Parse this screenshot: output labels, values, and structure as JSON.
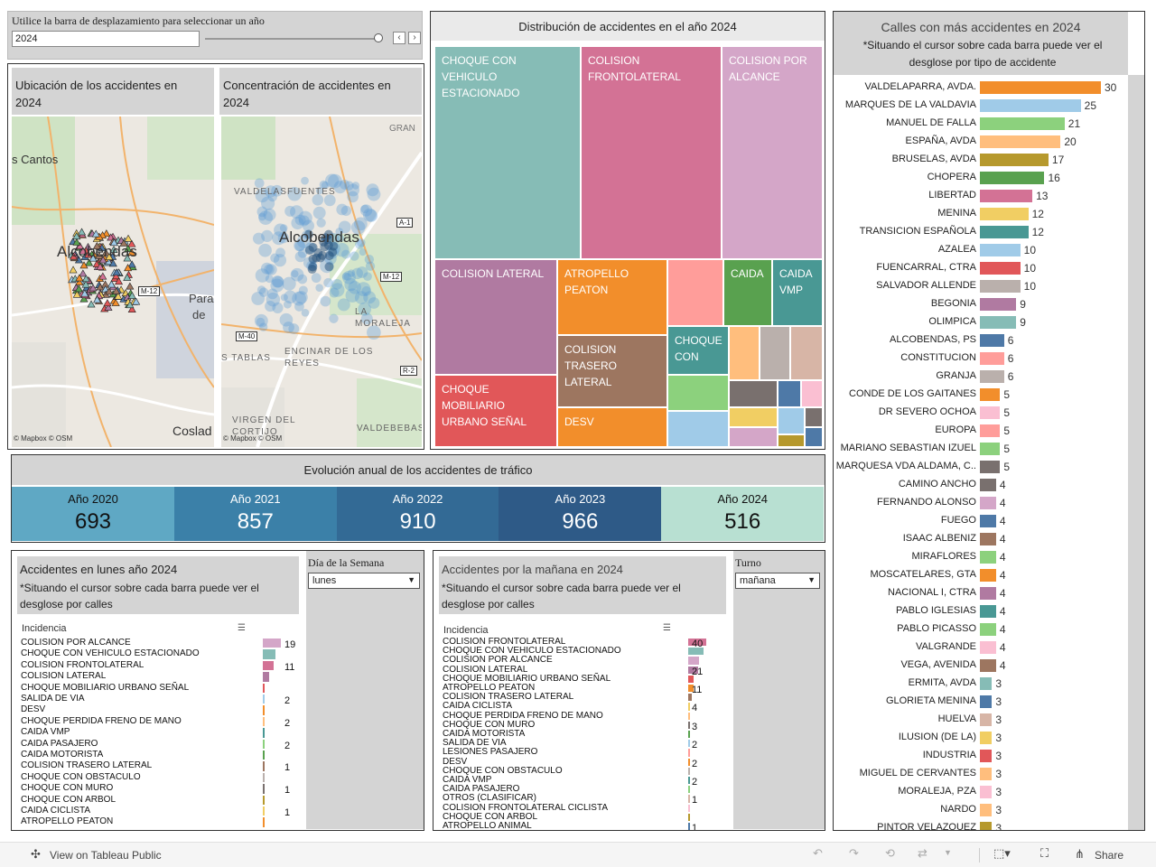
{
  "year_selector": {
    "label": "Utilice la barra de desplazamiento para seleccionar un año",
    "value": "2024",
    "prev": "‹",
    "next": "›"
  },
  "map1": {
    "title": "Ubicación de los accidentes en 2024",
    "labels": [
      "s Cantos",
      "Alcobendas",
      "Para",
      "de",
      "Coslad"
    ],
    "road": "M-12",
    "credits": "© Mapbox  © OSM"
  },
  "map2": {
    "title": "Concentración de accidentes en 2024",
    "labels": [
      "GRAN",
      "VALDELASFUENTES",
      "Alcobendas",
      "LA MORALEJA",
      "ENCINAR DE LOS REYES",
      "S TABLAS",
      "VIRGEN DEL CORTIJO",
      "VALDEBEBAS"
    ],
    "roads": [
      "A-1",
      "M-12",
      "M-40",
      "R-2"
    ],
    "credits": "© Mapbox  © OSM"
  },
  "treemap": {
    "title": "Distribución de accidentes en el año 2024",
    "tiles": [
      {
        "label": "CHOQUE CON VEHICULO ESTACIONADO",
        "color": "#86bcb6"
      },
      {
        "label": "COLISION FRONTOLATERAL",
        "color": "#d37295"
      },
      {
        "label": "COLISION POR ALCANCE",
        "color": "#d4a6c8"
      },
      {
        "label": "COLISION LATERAL",
        "color": "#b07aa1"
      },
      {
        "label": "ATROPELLO PEATON",
        "color": "#f28e2b"
      },
      {
        "label": "CAIDA",
        "color": "#59a14f"
      },
      {
        "label": "CAIDA VMP",
        "color": "#499894"
      },
      {
        "label": "COLISION TRASERO LATERAL",
        "color": "#9d7660"
      },
      {
        "label": "CHOQUE CON",
        "color": "#499894"
      },
      {
        "label": "CHOQUE MOBILIARIO URBANO SEÑAL",
        "color": "#e15759"
      },
      {
        "label": "DESV",
        "color": "#f28e2b"
      }
    ]
  },
  "streets": {
    "title": "Calles con más accidentes en 2024",
    "subtitle": "*Situando el cursor sobre cada barra puede ver el desglose por tipo de accidente",
    "rows": [
      {
        "name": "VALDELAPARRA, AVDA.",
        "value": 30,
        "color": "#f28e2b"
      },
      {
        "name": "MARQUES DE LA VALDAVIA",
        "value": 25,
        "color": "#a0cbe8"
      },
      {
        "name": "MANUEL DE FALLA",
        "value": 21,
        "color": "#8cd17d"
      },
      {
        "name": "ESPAÑA, AVDA",
        "value": 20,
        "color": "#ffbe7d"
      },
      {
        "name": "BRUSELAS, AVDA",
        "value": 17,
        "color": "#b6992d"
      },
      {
        "name": "CHOPERA",
        "value": 16,
        "color": "#59a14f"
      },
      {
        "name": "LIBERTAD",
        "value": 13,
        "color": "#d37295"
      },
      {
        "name": "MENINA",
        "value": 12,
        "color": "#f1ce63"
      },
      {
        "name": "TRANSICION ESPAÑOLA",
        "value": 12,
        "color": "#499894"
      },
      {
        "name": "AZALEA",
        "value": 10,
        "color": "#a0cbe8"
      },
      {
        "name": "FUENCARRAL, CTRA",
        "value": 10,
        "color": "#e15759"
      },
      {
        "name": "SALVADOR ALLENDE",
        "value": 10,
        "color": "#bab0ac"
      },
      {
        "name": "BEGONIA",
        "value": 9,
        "color": "#b07aa1"
      },
      {
        "name": "OLIMPICA",
        "value": 9,
        "color": "#86bcb6"
      },
      {
        "name": "ALCOBENDAS, PS",
        "value": 6,
        "color": "#4e79a7"
      },
      {
        "name": "CONSTITUCION",
        "value": 6,
        "color": "#ff9d9a"
      },
      {
        "name": "GRANJA",
        "value": 6,
        "color": "#bab0ac"
      },
      {
        "name": "CONDE DE LOS GAITANES",
        "value": 5,
        "color": "#f28e2b"
      },
      {
        "name": "DR SEVERO OCHOA",
        "value": 5,
        "color": "#fabfd2"
      },
      {
        "name": "EUROPA",
        "value": 5,
        "color": "#ff9d9a"
      },
      {
        "name": "MARIANO SEBASTIAN IZUEL",
        "value": 5,
        "color": "#8cd17d"
      },
      {
        "name": "MARQUESA VDA ALDAMA, C..",
        "value": 5,
        "color": "#79706e"
      },
      {
        "name": "CAMINO ANCHO",
        "value": 4,
        "color": "#79706e"
      },
      {
        "name": "FERNANDO ALONSO",
        "value": 4,
        "color": "#d4a6c8"
      },
      {
        "name": "FUEGO",
        "value": 4,
        "color": "#4e79a7"
      },
      {
        "name": "ISAAC ALBENIZ",
        "value": 4,
        "color": "#9d7660"
      },
      {
        "name": "MIRAFLORES",
        "value": 4,
        "color": "#8cd17d"
      },
      {
        "name": "MOSCATELARES, GTA",
        "value": 4,
        "color": "#f28e2b"
      },
      {
        "name": "NACIONAL I, CTRA",
        "value": 4,
        "color": "#b07aa1"
      },
      {
        "name": "PABLO IGLESIAS",
        "value": 4,
        "color": "#499894"
      },
      {
        "name": "PABLO PICASSO",
        "value": 4,
        "color": "#8cd17d"
      },
      {
        "name": "VALGRANDE",
        "value": 4,
        "color": "#fabfd2"
      },
      {
        "name": "VEGA, AVENIDA",
        "value": 4,
        "color": "#9d7660"
      },
      {
        "name": "ERMITA, AVDA",
        "value": 3,
        "color": "#86bcb6"
      },
      {
        "name": "GLORIETA MENINA",
        "value": 3,
        "color": "#4e79a7"
      },
      {
        "name": "HUELVA",
        "value": 3,
        "color": "#d7b5a6"
      },
      {
        "name": "ILUSION (DE LA)",
        "value": 3,
        "color": "#f1ce63"
      },
      {
        "name": "INDUSTRIA",
        "value": 3,
        "color": "#e15759"
      },
      {
        "name": "MIGUEL DE CERVANTES",
        "value": 3,
        "color": "#ffbe7d"
      },
      {
        "name": "MORALEJA, PZA",
        "value": 3,
        "color": "#fabfd2"
      },
      {
        "name": "NARDO",
        "value": 3,
        "color": "#ffbe7d"
      },
      {
        "name": "PINTOR VELAZQUEZ",
        "value": 3,
        "color": "#b6992d"
      }
    ]
  },
  "evolution": {
    "title": "Evolución anual de los accidentes de tráfico",
    "years": [
      {
        "label": "Año 2020",
        "value": "693",
        "color": "#5fa8c4",
        "text": "#111"
      },
      {
        "label": "Año 2021",
        "value": "857",
        "color": "#3b80a8",
        "text": "#fff"
      },
      {
        "label": "Año 2022",
        "value": "910",
        "color": "#336a95",
        "text": "#fff"
      },
      {
        "label": "Año 2023",
        "value": "966",
        "color": "#2e5a87",
        "text": "#fff"
      },
      {
        "label": "Año 2024",
        "value": "516",
        "color": "#b8e0d2",
        "text": "#111"
      }
    ]
  },
  "monday": {
    "title": "Accidentes en lunes año 2024",
    "subtitle": "*Situando el cursor sobre cada barra puede ver el desglose por calles",
    "column": "Incidencia",
    "filter_label": "Día de la Semana",
    "filter_value": "lunes",
    "rows": [
      {
        "label": "COLISION POR ALCANCE",
        "value": 19,
        "color": "#d4a6c8",
        "shown": "19"
      },
      {
        "label": "CHOQUE CON VEHICULO ESTACIONADO",
        "value": 13,
        "color": "#86bcb6",
        "shown": ""
      },
      {
        "label": "COLISION FRONTOLATERAL",
        "value": 11,
        "color": "#d37295",
        "shown": "11"
      },
      {
        "label": "COLISION LATERAL",
        "value": 7,
        "color": "#b07aa1",
        "shown": ""
      },
      {
        "label": "CHOQUE MOBILIARIO URBANO SEÑAL",
        "value": 2,
        "color": "#e15759",
        "shown": ""
      },
      {
        "label": "SALIDA DE VIA",
        "value": 2,
        "color": "#a0cbe8",
        "shown": "2"
      },
      {
        "label": "DESV",
        "value": 2,
        "color": "#f28e2b",
        "shown": ""
      },
      {
        "label": "CHOQUE PERDIDA FRENO DE MANO",
        "value": 2,
        "color": "#ffbe7d",
        "shown": "2"
      },
      {
        "label": "CAIDA VMP",
        "value": 2,
        "color": "#499894",
        "shown": ""
      },
      {
        "label": "CAIDA PASAJERO",
        "value": 2,
        "color": "#8cd17d",
        "shown": "2"
      },
      {
        "label": "CAIDA MOTORISTA",
        "value": 2,
        "color": "#59a14f",
        "shown": ""
      },
      {
        "label": "COLISION TRASERO LATERAL",
        "value": 1,
        "color": "#9d7660",
        "shown": "1"
      },
      {
        "label": "CHOQUE CON OBSTACULO",
        "value": 1,
        "color": "#bab0ac",
        "shown": ""
      },
      {
        "label": "CHOQUE CON MURO",
        "value": 1,
        "color": "#79706e",
        "shown": "1"
      },
      {
        "label": "CHOQUE CON ARBOL",
        "value": 1,
        "color": "#b6992d",
        "shown": ""
      },
      {
        "label": "CAIDA CICLISTA",
        "value": 1,
        "color": "#f1ce63",
        "shown": "1"
      },
      {
        "label": "ATROPELLO PEATON",
        "value": 1,
        "color": "#f28e2b",
        "shown": ""
      }
    ]
  },
  "morning": {
    "title": "Accidentes por la mañana en  2024",
    "subtitle": "*Situando el cursor sobre cada barra puede ver el desglose por calles",
    "column": "Incidencia",
    "filter_label": "Turno",
    "filter_value": "mañana",
    "rows": [
      {
        "label": "COLISION FRONTOLATERAL",
        "value": 40,
        "color": "#d37295",
        "shown": "40"
      },
      {
        "label": "CHOQUE CON VEHICULO ESTACIONADO",
        "value": 33,
        "color": "#86bcb6",
        "shown": ""
      },
      {
        "label": "COLISION POR ALCANCE",
        "value": 23,
        "color": "#d4a6c8",
        "shown": ""
      },
      {
        "label": "COLISION LATERAL",
        "value": 21,
        "color": "#b07aa1",
        "shown": "21"
      },
      {
        "label": "CHOQUE MOBILIARIO URBANO SEÑAL",
        "value": 12,
        "color": "#e15759",
        "shown": ""
      },
      {
        "label": "ATROPELLO PEATON",
        "value": 11,
        "color": "#f28e2b",
        "shown": "11"
      },
      {
        "label": "COLISION TRASERO LATERAL",
        "value": 8,
        "color": "#9d7660",
        "shown": ""
      },
      {
        "label": "CAIDA CICLISTA",
        "value": 4,
        "color": "#f1ce63",
        "shown": "4"
      },
      {
        "label": "CHOQUE PERDIDA FRENO DE MANO",
        "value": 3,
        "color": "#ffbe7d",
        "shown": ""
      },
      {
        "label": "CHOQUE CON MURO",
        "value": 3,
        "color": "#79706e",
        "shown": "3"
      },
      {
        "label": "CAIDA MOTORISTA",
        "value": 2,
        "color": "#59a14f",
        "shown": ""
      },
      {
        "label": "SALIDA DE VIA",
        "value": 2,
        "color": "#a0cbe8",
        "shown": "2"
      },
      {
        "label": "LESIONES PASAJERO",
        "value": 2,
        "color": "#ff9d9a",
        "shown": ""
      },
      {
        "label": "DESV",
        "value": 2,
        "color": "#f28e2b",
        "shown": "2"
      },
      {
        "label": "CHOQUE CON OBSTACULO",
        "value": 2,
        "color": "#bab0ac",
        "shown": ""
      },
      {
        "label": "CAIDA VMP",
        "value": 2,
        "color": "#499894",
        "shown": "2"
      },
      {
        "label": "CAIDA PASAJERO",
        "value": 1,
        "color": "#8cd17d",
        "shown": ""
      },
      {
        "label": "OTROS (CLASIFICAR)",
        "value": 1,
        "color": "#d7b5a6",
        "shown": "1"
      },
      {
        "label": "COLISION FRONTOLATERAL CICLISTA",
        "value": 1,
        "color": "#fabfd2",
        "shown": ""
      },
      {
        "label": "CHOQUE CON ARBOL",
        "value": 1,
        "color": "#b6992d",
        "shown": ""
      },
      {
        "label": "ATROPELLO ANIMAL",
        "value": 1,
        "color": "#4e79a7",
        "shown": "1"
      }
    ]
  },
  "footer": {
    "view_label": "View on Tableau Public",
    "share_label": "Share"
  }
}
